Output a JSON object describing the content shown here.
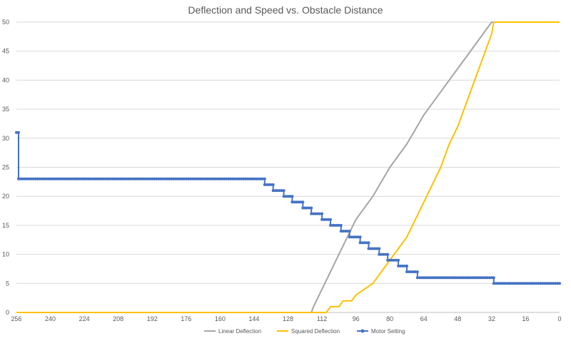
{
  "chart_data": {
    "type": "line",
    "title": "Deflection and Speed vs. Obstacle Distance",
    "xlabel": "",
    "ylabel": "",
    "x_reversed": true,
    "xlim": [
      256,
      0
    ],
    "ylim": [
      0,
      50
    ],
    "x_ticks": [
      256,
      240,
      224,
      208,
      192,
      176,
      160,
      144,
      128,
      112,
      96,
      80,
      64,
      48,
      32,
      16,
      0
    ],
    "y_ticks": [
      0,
      5,
      10,
      15,
      20,
      25,
      30,
      35,
      40,
      45,
      50
    ],
    "grid": "horizontal",
    "legend_position": "bottom",
    "series": [
      {
        "name": "Linear Deflection",
        "color": "#a5a5a5",
        "marker": false,
        "points": [
          [
            256,
            0
          ],
          [
            117,
            0
          ],
          [
            116,
            1
          ],
          [
            112,
            4
          ],
          [
            108,
            7
          ],
          [
            104,
            10
          ],
          [
            100,
            13
          ],
          [
            96,
            16
          ],
          [
            88,
            20
          ],
          [
            80,
            25
          ],
          [
            72,
            29
          ],
          [
            64,
            34
          ],
          [
            56,
            38
          ],
          [
            48,
            42
          ],
          [
            40,
            46
          ],
          [
            34,
            49
          ],
          [
            32,
            50
          ],
          [
            0,
            50
          ]
        ]
      },
      {
        "name": "Squared Deflection",
        "color": "#ffc000",
        "marker": false,
        "points": [
          [
            256,
            0
          ],
          [
            110,
            0
          ],
          [
            108,
            1
          ],
          [
            104,
            1
          ],
          [
            102,
            2
          ],
          [
            98,
            2
          ],
          [
            96,
            3
          ],
          [
            92,
            4
          ],
          [
            88,
            5
          ],
          [
            84,
            7
          ],
          [
            80,
            9
          ],
          [
            76,
            11
          ],
          [
            72,
            13
          ],
          [
            68,
            16
          ],
          [
            64,
            19
          ],
          [
            60,
            22
          ],
          [
            56,
            25
          ],
          [
            52,
            29
          ],
          [
            48,
            32
          ],
          [
            44,
            36
          ],
          [
            40,
            40
          ],
          [
            36,
            44
          ],
          [
            32,
            48
          ],
          [
            31,
            50
          ],
          [
            0,
            50
          ]
        ]
      },
      {
        "name": "Motor Setting",
        "color": "#4472c4",
        "marker": true,
        "steps": [
          [
            256,
            255,
            31
          ],
          [
            255,
            139,
            23
          ],
          [
            139,
            135,
            22
          ],
          [
            135,
            130,
            21
          ],
          [
            130,
            126,
            20
          ],
          [
            126,
            121,
            19
          ],
          [
            121,
            117,
            18
          ],
          [
            117,
            112,
            17
          ],
          [
            112,
            108,
            16
          ],
          [
            108,
            103,
            15
          ],
          [
            103,
            99,
            14
          ],
          [
            99,
            94,
            13
          ],
          [
            94,
            90,
            12
          ],
          [
            90,
            85,
            11
          ],
          [
            85,
            81,
            10
          ],
          [
            81,
            76,
            9
          ],
          [
            76,
            72,
            8
          ],
          [
            72,
            67,
            7
          ],
          [
            67,
            31,
            6
          ],
          [
            31,
            0,
            5
          ]
        ]
      }
    ]
  }
}
